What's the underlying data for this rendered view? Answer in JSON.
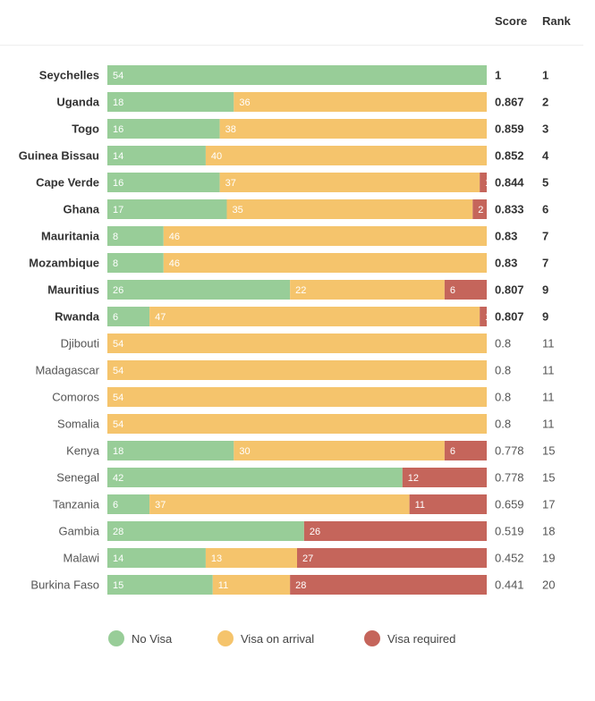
{
  "header": {
    "score_label": "Score",
    "rank_label": "Rank"
  },
  "colors": {
    "no_visa": "#98cd98",
    "visa_on_arrival": "#f5c46c",
    "visa_required": "#c5655b",
    "text_dark": "#333333",
    "text_light": "#555555"
  },
  "legend": [
    {
      "label": "No Visa",
      "color": "#98cd98"
    },
    {
      "label": "Visa on arrival",
      "color": "#f5c46c"
    },
    {
      "label": "Visa required",
      "color": "#c5655b"
    }
  ],
  "chart_data": {
    "type": "bar",
    "orientation": "horizontal",
    "stacked": true,
    "xlim": [
      0,
      54
    ],
    "grid": false,
    "legend_position": "bottom",
    "series_names": [
      "No Visa",
      "Visa on arrival",
      "Visa required"
    ],
    "rows": [
      {
        "country": "Seychelles",
        "bold": true,
        "values": [
          54,
          0,
          0
        ],
        "labels": [
          "54",
          "",
          ""
        ],
        "score": "1",
        "rank": "1"
      },
      {
        "country": "Uganda",
        "bold": true,
        "values": [
          18,
          36,
          0
        ],
        "labels": [
          "18",
          "36",
          ""
        ],
        "score": "0.867",
        "rank": "2"
      },
      {
        "country": "Togo",
        "bold": true,
        "values": [
          16,
          38,
          0
        ],
        "labels": [
          "16",
          "38",
          ""
        ],
        "score": "0.859",
        "rank": "3"
      },
      {
        "country": "Guinea Bissau",
        "bold": true,
        "values": [
          14,
          40,
          0
        ],
        "labels": [
          "14",
          "40",
          ""
        ],
        "score": "0.852",
        "rank": "4"
      },
      {
        "country": "Cape Verde",
        "bold": true,
        "values": [
          16,
          37,
          1
        ],
        "labels": [
          "16",
          "37",
          "1"
        ],
        "score": "0.844",
        "rank": "5"
      },
      {
        "country": "Ghana",
        "bold": true,
        "values": [
          17,
          35,
          2
        ],
        "labels": [
          "17",
          "35",
          "2"
        ],
        "score": "0.833",
        "rank": "6"
      },
      {
        "country": "Mauritania",
        "bold": true,
        "values": [
          8,
          46,
          0
        ],
        "labels": [
          "8",
          "46",
          ""
        ],
        "score": "0.83",
        "rank": "7"
      },
      {
        "country": "Mozambique",
        "bold": true,
        "values": [
          8,
          46,
          0
        ],
        "labels": [
          "8",
          "46",
          ""
        ],
        "score": "0.83",
        "rank": "7"
      },
      {
        "country": "Mauritius",
        "bold": true,
        "values": [
          26,
          22,
          6
        ],
        "labels": [
          "26",
          "22",
          "6"
        ],
        "score": "0.807",
        "rank": "9"
      },
      {
        "country": "Rwanda",
        "bold": true,
        "values": [
          6,
          47,
          1
        ],
        "labels": [
          "6",
          "47",
          "1"
        ],
        "score": "0.807",
        "rank": "9"
      },
      {
        "country": "Djibouti",
        "bold": false,
        "values": [
          0,
          54,
          0
        ],
        "labels": [
          "",
          "54",
          ""
        ],
        "score": "0.8",
        "rank": "11"
      },
      {
        "country": "Madagascar",
        "bold": false,
        "values": [
          0,
          54,
          0
        ],
        "labels": [
          "",
          "54",
          ""
        ],
        "score": "0.8",
        "rank": "11"
      },
      {
        "country": "Comoros",
        "bold": false,
        "values": [
          0,
          54,
          0
        ],
        "labels": [
          "",
          "54",
          ""
        ],
        "score": "0.8",
        "rank": "11"
      },
      {
        "country": "Somalia",
        "bold": false,
        "values": [
          0,
          54,
          0
        ],
        "labels": [
          "",
          "54",
          ""
        ],
        "score": "0.8",
        "rank": "11"
      },
      {
        "country": "Kenya",
        "bold": false,
        "values": [
          18,
          30,
          6
        ],
        "labels": [
          "18",
          "30",
          "6"
        ],
        "score": "0.778",
        "rank": "15"
      },
      {
        "country": "Senegal",
        "bold": false,
        "values": [
          42,
          0,
          12
        ],
        "labels": [
          "42",
          "",
          "12"
        ],
        "score": "0.778",
        "rank": "15"
      },
      {
        "country": "Tanzania",
        "bold": false,
        "values": [
          6,
          37,
          11
        ],
        "labels": [
          "6",
          "37",
          "11"
        ],
        "score": "0.659",
        "rank": "17"
      },
      {
        "country": "Gambia",
        "bold": false,
        "values": [
          28,
          0,
          26
        ],
        "labels": [
          "28",
          "",
          "26"
        ],
        "score": "0.519",
        "rank": "18"
      },
      {
        "country": "Malawi",
        "bold": false,
        "values": [
          14,
          13,
          27
        ],
        "labels": [
          "14",
          "13",
          "27"
        ],
        "score": "0.452",
        "rank": "19"
      },
      {
        "country": "Burkina Faso",
        "bold": false,
        "values": [
          15,
          11,
          28
        ],
        "labels": [
          "15",
          "11",
          "28"
        ],
        "score": "0.441",
        "rank": "20"
      }
    ]
  }
}
